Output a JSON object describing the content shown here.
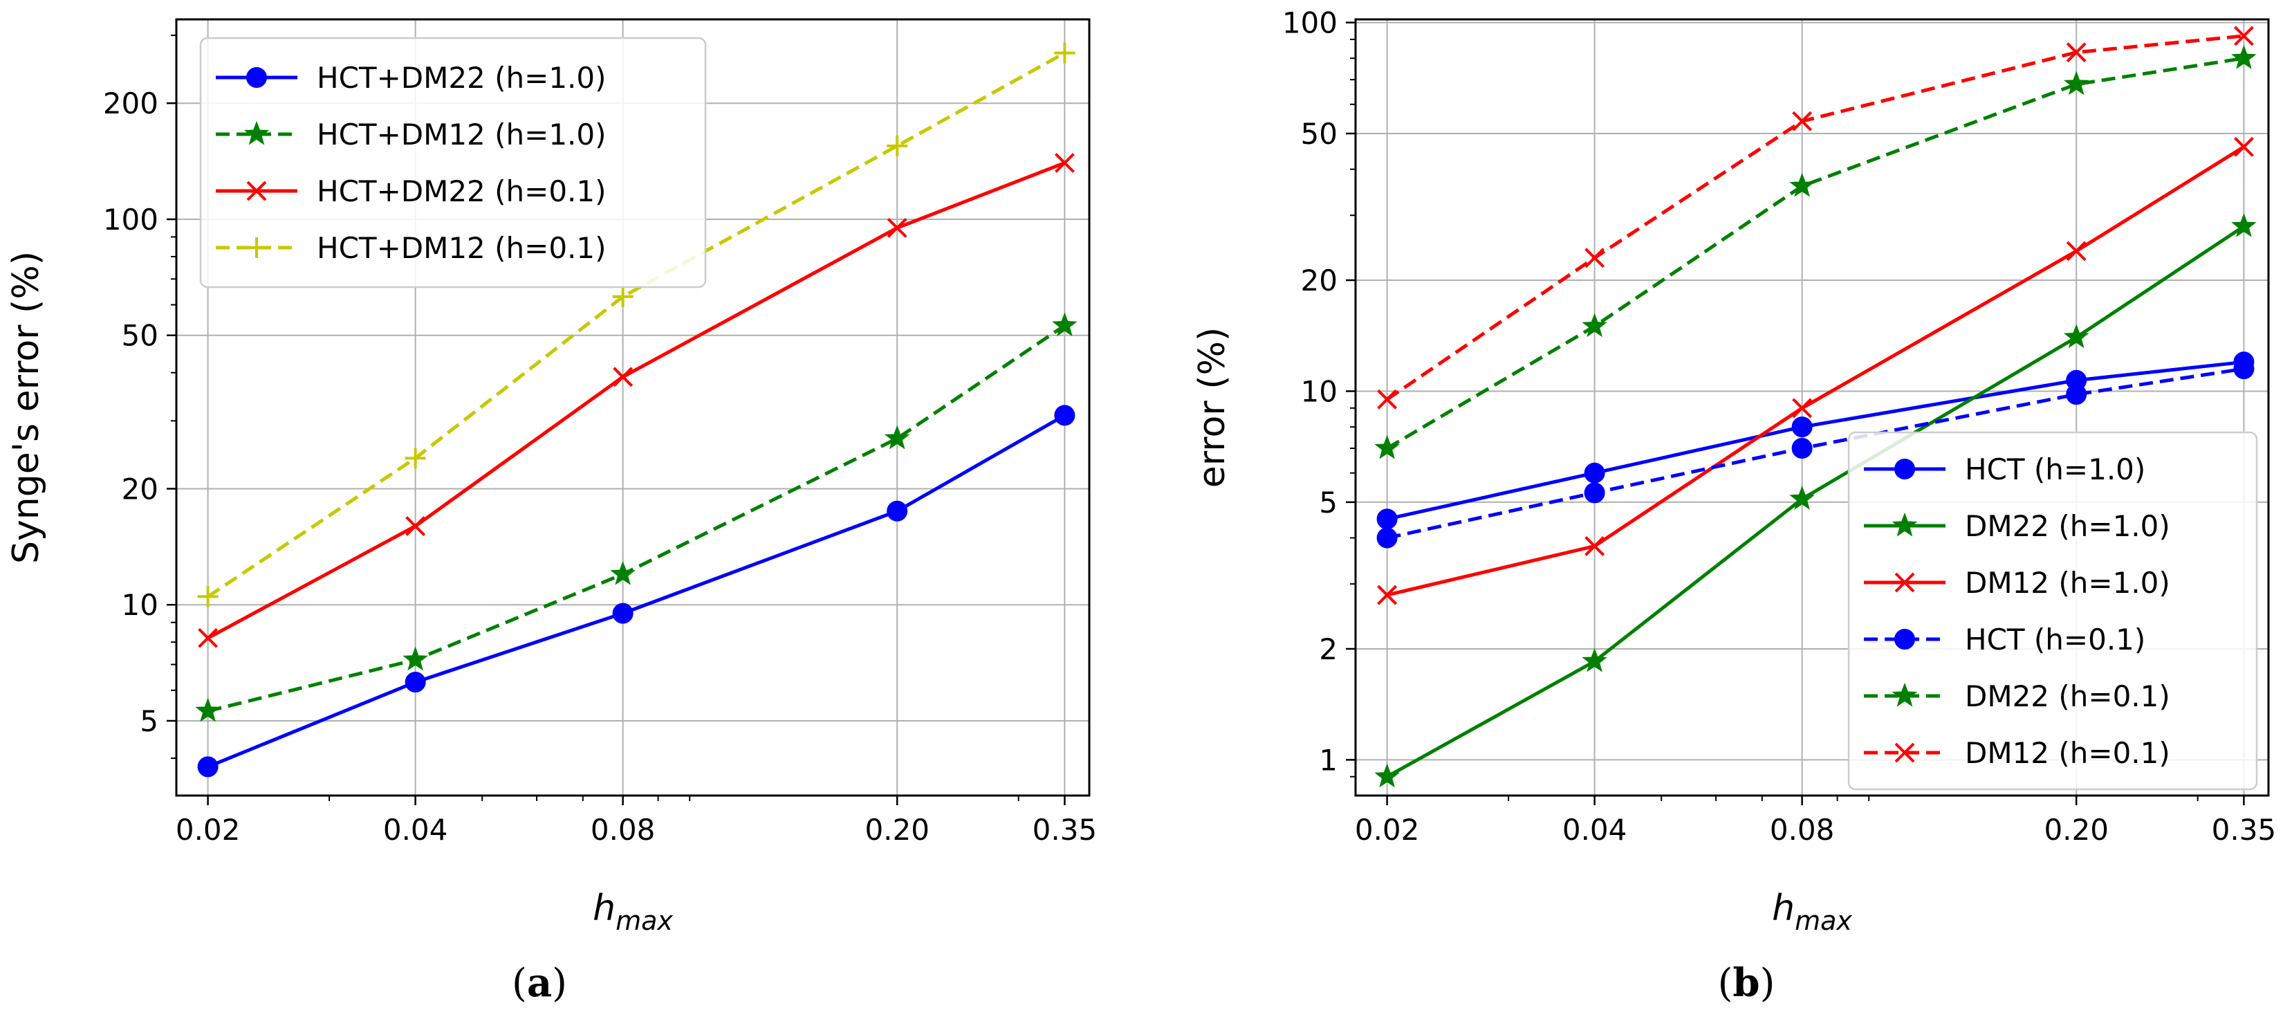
{
  "chart_data": [
    {
      "panel": "(a)",
      "caption_open": "(",
      "caption_letter": "a",
      "caption_close": ")",
      "type": "line",
      "xscale": "log",
      "yscale": "log",
      "grid": true,
      "legend_position": "top-left",
      "title": "",
      "xlabel": "h",
      "xlabel_sub": "max",
      "ylabel": "Synge's error  (%)",
      "xlim": [
        0.018,
        0.38
      ],
      "ylim": [
        3.2,
        330
      ],
      "x": [
        0.02,
        0.04,
        0.08,
        0.2,
        0.35
      ],
      "x_ticks": [
        0.02,
        0.04,
        0.08,
        0.2,
        0.35
      ],
      "x_tick_labels": [
        "0.02",
        "0.04",
        "0.08",
        "0.20",
        "0.35"
      ],
      "y_ticks": [
        5,
        10,
        20,
        50,
        100,
        200
      ],
      "y_tick_labels": [
        "5",
        "10",
        "20",
        "50",
        "100",
        "200"
      ],
      "series": [
        {
          "name": "HCT+DM22 (h=1.0)",
          "color": "#0000ff",
          "linestyle": "solid",
          "marker": "circle",
          "values": [
            3.8,
            6.3,
            9.5,
            17.5,
            31
          ]
        },
        {
          "name": "HCT+DM12 (h=1.0)",
          "color": "#008000",
          "linestyle": "dashed",
          "marker": "star",
          "values": [
            5.3,
            7.2,
            12,
            27,
            53
          ]
        },
        {
          "name": "HCT+DM22 (h=0.1)",
          "color": "#ff0000",
          "linestyle": "solid",
          "marker": "x",
          "values": [
            8.2,
            16,
            39,
            95,
            140
          ]
        },
        {
          "name": "HCT+DM12 (h=0.1)",
          "color": "#c8c800",
          "linestyle": "dashed",
          "marker": "plus",
          "values": [
            10.5,
            24,
            63,
            155,
            270
          ]
        }
      ]
    },
    {
      "panel": "(b)",
      "caption_open": "(",
      "caption_letter": "b",
      "caption_close": ")",
      "type": "line",
      "xscale": "log",
      "yscale": "log",
      "grid": true,
      "legend_position": "bottom-right",
      "title": "",
      "xlabel": "h",
      "xlabel_sub": "max",
      "ylabel": "error  (%)",
      "xlim": [
        0.018,
        0.38
      ],
      "ylim": [
        0.8,
        102
      ],
      "x": [
        0.02,
        0.04,
        0.08,
        0.2,
        0.35
      ],
      "x_ticks": [
        0.02,
        0.04,
        0.08,
        0.2,
        0.35
      ],
      "x_tick_labels": [
        "0.02",
        "0.04",
        "0.08",
        "0.20",
        "0.35"
      ],
      "y_ticks": [
        1,
        2,
        5,
        10,
        20,
        50,
        100
      ],
      "y_tick_labels": [
        "1",
        "2",
        "5",
        "10",
        "20",
        "50",
        "100"
      ],
      "series": [
        {
          "name": "HCT (h=1.0)",
          "color": "#0000ff",
          "linestyle": "solid",
          "marker": "circle",
          "values": [
            4.5,
            6.0,
            8.0,
            10.7,
            12
          ]
        },
        {
          "name": "DM22 (h=1.0)",
          "color": "#008000",
          "linestyle": "solid",
          "marker": "star",
          "values": [
            0.9,
            1.85,
            5.1,
            14,
            28
          ]
        },
        {
          "name": "DM12 (h=1.0)",
          "color": "#ff0000",
          "linestyle": "solid",
          "marker": "x",
          "values": [
            2.8,
            3.8,
            9,
            24,
            46
          ]
        },
        {
          "name": "HCT (h=0.1)",
          "color": "#0000ff",
          "linestyle": "dashed",
          "marker": "circle",
          "values": [
            4.0,
            5.3,
            7.0,
            9.8,
            11.5
          ]
        },
        {
          "name": "DM22 (h=0.1)",
          "color": "#008000",
          "linestyle": "dashed",
          "marker": "star",
          "values": [
            7.0,
            15,
            36,
            68,
            80
          ]
        },
        {
          "name": "DM12 (h=0.1)",
          "color": "#ff0000",
          "linestyle": "dashed",
          "marker": "x",
          "values": [
            9.5,
            23,
            54,
            83,
            92
          ]
        }
      ]
    }
  ]
}
